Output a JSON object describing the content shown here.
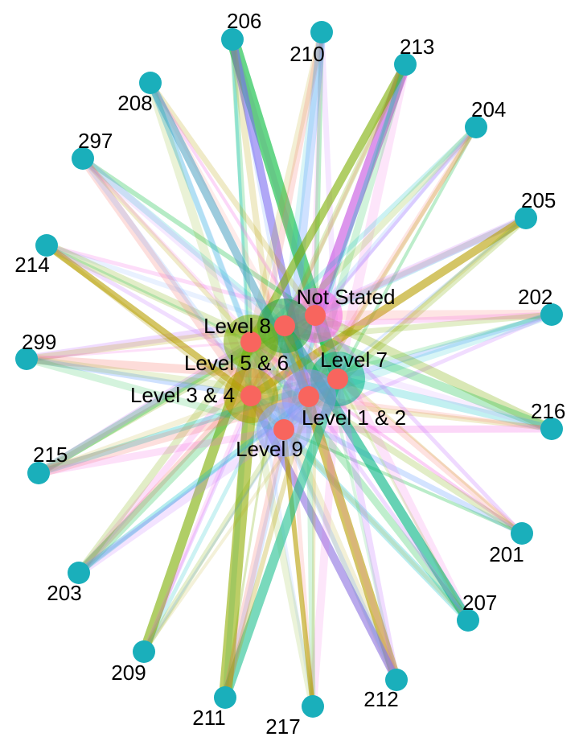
{
  "diagram": {
    "type": "bipartite-network",
    "colors": {
      "outer_node": "#1aafbb",
      "inner_node": "#f8655e",
      "edge_palette": [
        "#f564e3",
        "#00ba38",
        "#b79f00",
        "#619cff",
        "#00bfc4",
        "#f8766d",
        "#7cae00",
        "#c77cff"
      ]
    },
    "inner_nodes": [
      {
        "id": "not-stated",
        "label": "Not Stated"
      },
      {
        "id": "level-8",
        "label": "Level 8"
      },
      {
        "id": "level-7",
        "label": "Level 7"
      },
      {
        "id": "level-5-6",
        "label": "Level 5 & 6"
      },
      {
        "id": "level-3-4",
        "label": "Level 3 & 4"
      },
      {
        "id": "level-1-2",
        "label": "Level 1 & 2"
      },
      {
        "id": "level-9",
        "label": "Level 9"
      }
    ],
    "outer_nodes": [
      {
        "id": "206",
        "label": "206"
      },
      {
        "id": "210",
        "label": "210"
      },
      {
        "id": "213",
        "label": "213"
      },
      {
        "id": "204",
        "label": "204"
      },
      {
        "id": "205",
        "label": "205"
      },
      {
        "id": "202",
        "label": "202"
      },
      {
        "id": "216",
        "label": "216"
      },
      {
        "id": "201",
        "label": "201"
      },
      {
        "id": "207",
        "label": "207"
      },
      {
        "id": "212",
        "label": "212"
      },
      {
        "id": "217",
        "label": "217"
      },
      {
        "id": "211",
        "label": "211"
      },
      {
        "id": "209",
        "label": "209"
      },
      {
        "id": "203",
        "label": "203"
      },
      {
        "id": "215",
        "label": "215"
      },
      {
        "id": "299",
        "label": "299"
      },
      {
        "id": "214",
        "label": "214"
      },
      {
        "id": "297",
        "label": "297"
      },
      {
        "id": "208",
        "label": "208"
      }
    ]
  }
}
